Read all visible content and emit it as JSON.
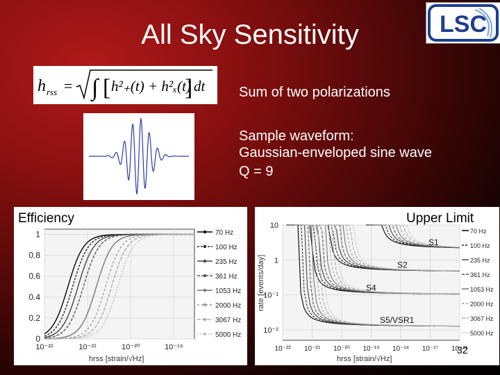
{
  "slide": {
    "title": "All Sky Sensitivity",
    "logo_text": "LSC",
    "formula_lhs": "h",
    "formula_lhs_sub": "rss",
    "formula_eq": "=",
    "formula_integrand": "h²₊(t) + h²ₓ(t)",
    "formula_dt": "dt",
    "note_polarizations": "Sum of two polarizations",
    "sample_line1": "Sample waveform:",
    "sample_line2": "Gaussian-enveloped sine wave",
    "sample_line3": "Q = 9",
    "page_number": "32"
  },
  "efficiency_plot": {
    "title": "Efficiency",
    "xlabel": "hrss [strain/√Hz]",
    "y_ticks": [
      "0",
      "0.2",
      "0.4",
      "0.6",
      "0.8",
      "1"
    ],
    "x_ticks": [
      "10⁻²²",
      "10⁻²¹",
      "10⁻²⁰",
      "10⁻¹⁹"
    ],
    "legend": [
      "70 Hz",
      "100 Hz",
      "235 Hz",
      "361 Hz",
      "1053 Hz",
      "2000 Hz",
      "3067 Hz",
      "5000 Hz"
    ]
  },
  "upper_limit_plot": {
    "title": "Upper Limit",
    "ylabel": "rate [events/day]",
    "xlabel": "hrss [strain/√Hz]",
    "y_ticks": [
      "10",
      "1",
      "10⁻¹",
      "10⁻²"
    ],
    "x_ticks": [
      "10⁻²²",
      "10⁻²¹",
      "10⁻²⁰",
      "10⁻¹⁹",
      "10⁻¹⁸",
      "10⁻¹⁷",
      "10⁻¹⁶"
    ],
    "run_labels": [
      "S1",
      "S2",
      "S4",
      "S5/VSR1"
    ],
    "legend": [
      "70 Hz",
      "100 Hz",
      "235 Hz",
      "361 Hz",
      "1053 Hz",
      "2000 Hz",
      "3067 Hz",
      "5000 Hz"
    ]
  },
  "chart_data": [
    {
      "type": "line",
      "title": "Efficiency",
      "xlabel": "hrss [strain/√Hz]",
      "x_scale": "log",
      "xlim": [
        1e-22,
        3e-19
      ],
      "ylim": [
        0,
        1.05
      ],
      "legend_position": "right",
      "series": [
        {
          "name": "70 Hz",
          "x50": 3.5e-22
        },
        {
          "name": "100 Hz",
          "x50": 4.5e-22
        },
        {
          "name": "235 Hz",
          "x50": 6e-22
        },
        {
          "name": "361 Hz",
          "x50": 8e-22
        },
        {
          "name": "1053 Hz",
          "x50": 1.6e-21
        },
        {
          "name": "2000 Hz",
          "x50": 2.6e-21
        },
        {
          "name": "3067 Hz",
          "x50": 3.6e-21
        },
        {
          "name": "5000 Hz",
          "x50": 5e-21
        }
      ]
    },
    {
      "type": "line",
      "title": "Upper Limit",
      "ylabel": "rate [events/day]",
      "xlabel": "hrss [strain/√Hz]",
      "x_scale": "log",
      "y_scale": "log",
      "xlim": [
        1e-22,
        1e-16
      ],
      "ylim": [
        0.005,
        10
      ],
      "legend_position": "right",
      "runs": [
        {
          "name": "S1",
          "plateau": 2.0,
          "x_edge": 1.5e-19
        },
        {
          "name": "S2",
          "plateau": 0.45,
          "x_edge": 3e-21
        },
        {
          "name": "S4",
          "plateau": 0.1,
          "x_edge": 8e-22
        },
        {
          "name": "S5/VSR1",
          "plateau": 0.012,
          "x_edge": 3e-22
        }
      ]
    }
  ]
}
